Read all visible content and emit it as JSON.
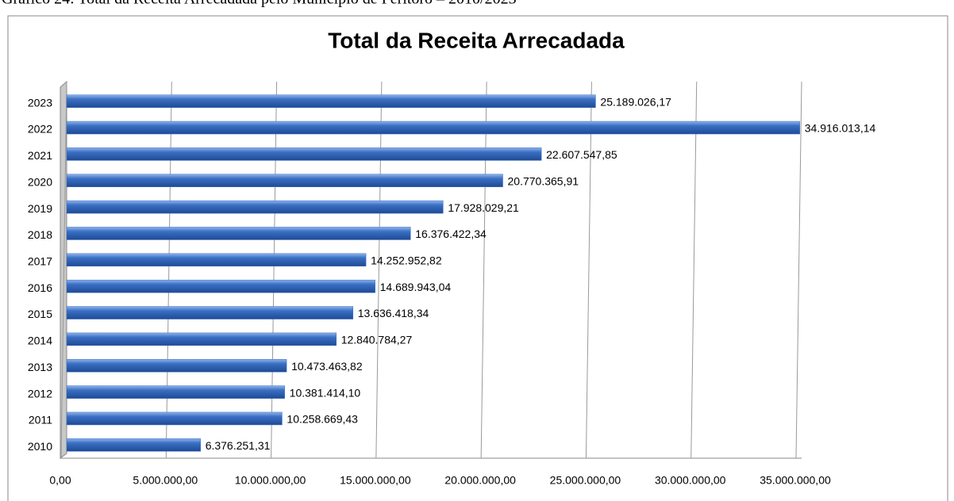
{
  "caption": "Gráfico 24: Total da Receita Arrecadada pelo Município de Peritoró – 2010/2023",
  "chart_data": {
    "type": "bar",
    "orientation": "horizontal",
    "title": "Total da Receita Arrecadada",
    "categories": [
      "2010",
      "2011",
      "2012",
      "2013",
      "2014",
      "2015",
      "2016",
      "2017",
      "2018",
      "2019",
      "2020",
      "2021",
      "2022",
      "2023"
    ],
    "values": [
      6376251.31,
      10258669.43,
      10381414.1,
      10473463.82,
      12840784.27,
      13636418.34,
      14689943.04,
      14252952.82,
      16376422.34,
      17928029.21,
      20770365.91,
      22607547.85,
      34916013.14,
      25189026.17
    ],
    "value_labels": [
      "6.376.251,31",
      "10.258.669,43",
      "10.381.414,10",
      "10.473.463,82",
      "12.840.784,27",
      "13.636.418,34",
      "14.689.943,04",
      "14.252.952,82",
      "16.376.422,34",
      "17.928.029,21",
      "20.770.365,91",
      "22.607.547,85",
      "34.916.013,14",
      "25.189.026,17"
    ],
    "color": "#3a6fc4",
    "xlim": [
      0,
      35000000
    ],
    "xticks": [
      {
        "value": 0,
        "label": "0,00"
      },
      {
        "value": 5000000,
        "label": "5.000.000,00"
      },
      {
        "value": 10000000,
        "label": "10.000.000,00"
      },
      {
        "value": 15000000,
        "label": "15.000.000,00"
      },
      {
        "value": 20000000,
        "label": "20.000.000,00"
      },
      {
        "value": 25000000,
        "label": "25.000.000,00"
      },
      {
        "value": 30000000,
        "label": "30.000.000,00"
      },
      {
        "value": 35000000,
        "label": "35.000.000,00"
      }
    ],
    "grid": true
  }
}
